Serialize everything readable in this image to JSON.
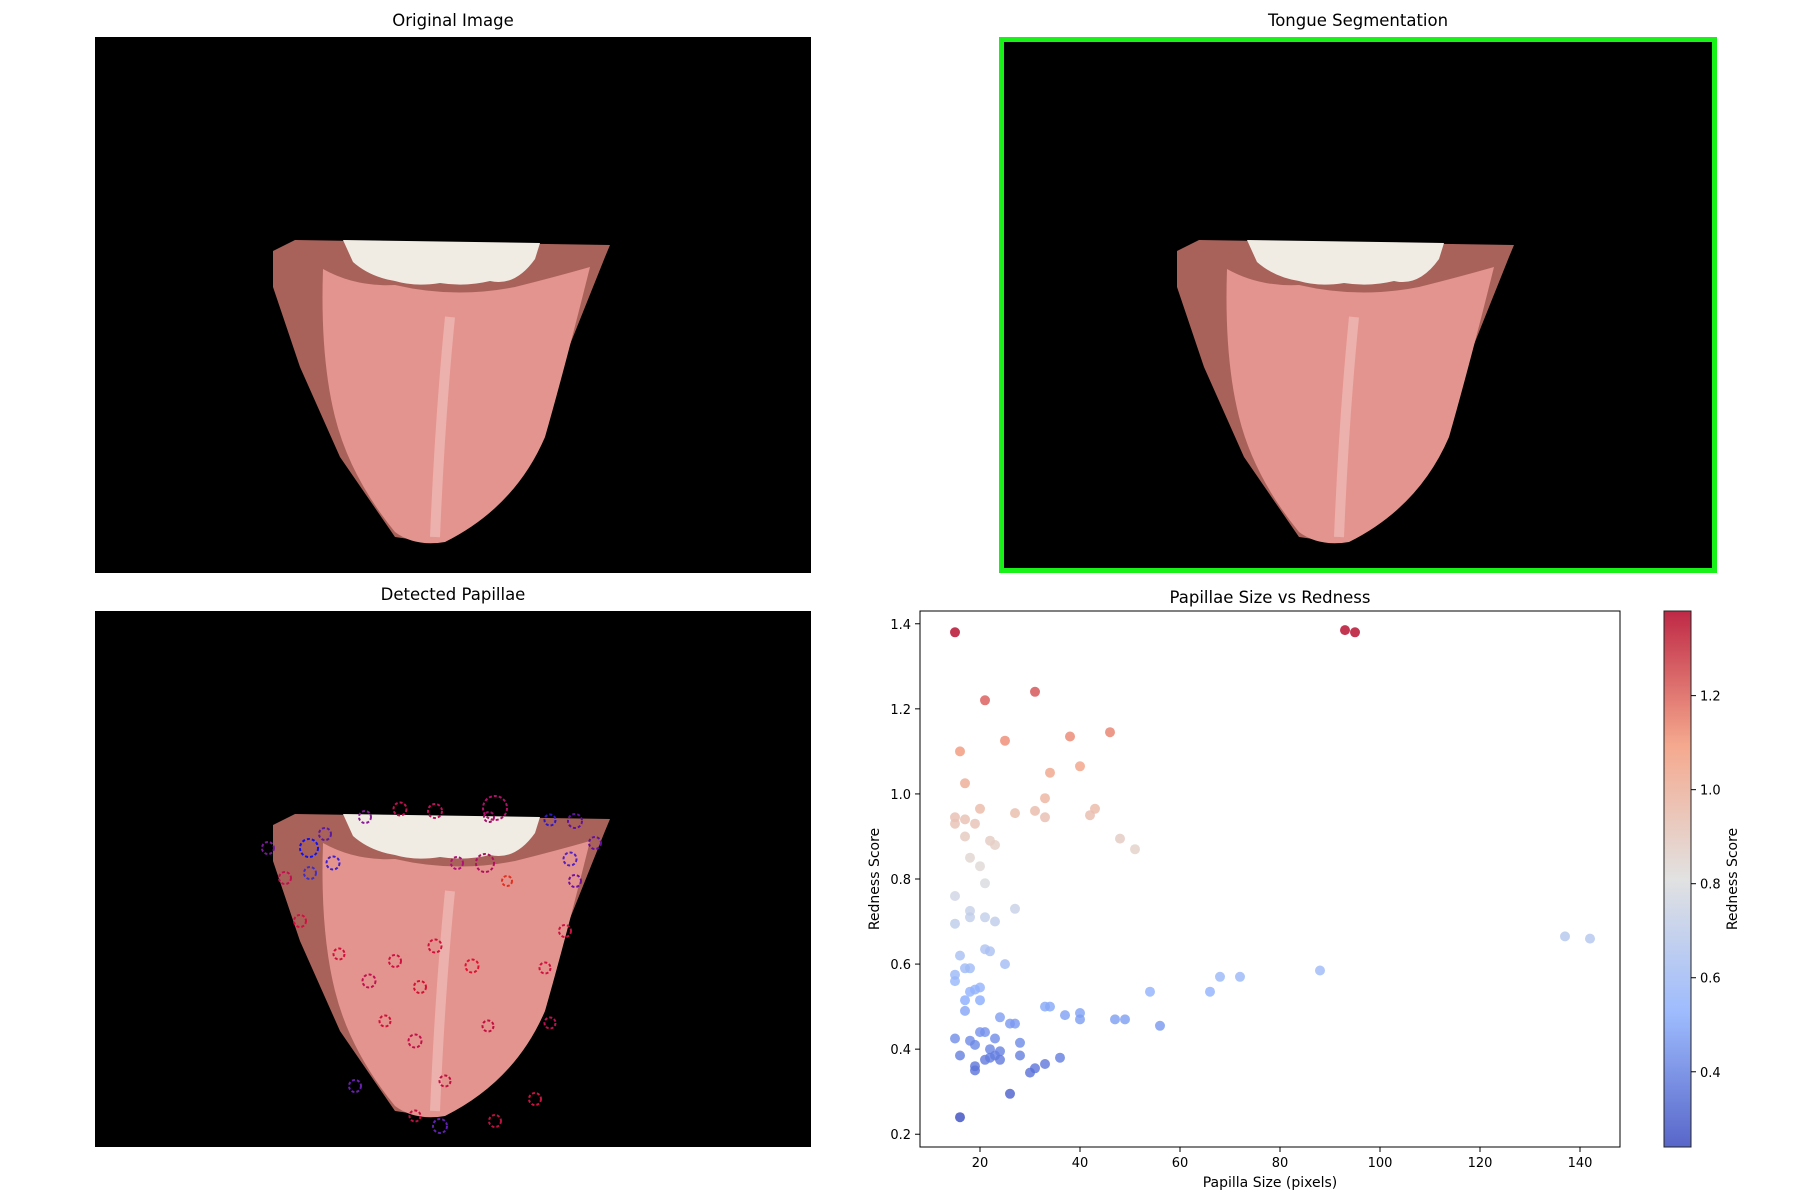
{
  "panels": {
    "original_title": "Original Image",
    "segmentation_title": "Tongue Segmentation",
    "papillae_title": "Detected Papillae",
    "scatter_title": "Papillae Size vs Redness"
  },
  "colors": {
    "background": "#000000",
    "segmentation_border": "#19f219",
    "tongue": "#e4948f",
    "teeth": "#f1ece3",
    "lip": "#a9625a",
    "cmap_low": "#3b4cc0",
    "cmap_mid": "#dddddd",
    "cmap_high": "#b40426"
  },
  "chart_data": {
    "type": "scatter",
    "title": "Papillae Size vs Redness",
    "xlabel": "Papilla Size (pixels)",
    "ylabel": "Redness Score",
    "xlim": [
      8,
      148
    ],
    "ylim": [
      0.17,
      1.43
    ],
    "xticks": [
      "20",
      "40",
      "60",
      "80",
      "100",
      "120",
      "140"
    ],
    "yticks": [
      "0.2",
      "0.4",
      "0.6",
      "0.8",
      "1.0",
      "1.2",
      "1.4"
    ],
    "colorbar": {
      "label": "Redness Score",
      "range": [
        0.24,
        1.38
      ],
      "ticks": [
        "0.4",
        "0.6",
        "0.8",
        "1.0",
        "1.2"
      ]
    },
    "grid": false,
    "points": [
      {
        "x": 15,
        "y": 1.38
      },
      {
        "x": 93,
        "y": 1.385
      },
      {
        "x": 95,
        "y": 1.38
      },
      {
        "x": 31,
        "y": 1.24
      },
      {
        "x": 21,
        "y": 1.22
      },
      {
        "x": 46,
        "y": 1.145
      },
      {
        "x": 38,
        "y": 1.135
      },
      {
        "x": 25,
        "y": 1.125
      },
      {
        "x": 16,
        "y": 1.1
      },
      {
        "x": 40,
        "y": 1.065
      },
      {
        "x": 34,
        "y": 1.05
      },
      {
        "x": 17,
        "y": 1.025
      },
      {
        "x": 33,
        "y": 0.99
      },
      {
        "x": 20,
        "y": 0.965
      },
      {
        "x": 43,
        "y": 0.965
      },
      {
        "x": 31,
        "y": 0.96
      },
      {
        "x": 27,
        "y": 0.955
      },
      {
        "x": 42,
        "y": 0.95
      },
      {
        "x": 15,
        "y": 0.945
      },
      {
        "x": 17,
        "y": 0.94
      },
      {
        "x": 33,
        "y": 0.945
      },
      {
        "x": 15,
        "y": 0.93
      },
      {
        "x": 19,
        "y": 0.93
      },
      {
        "x": 17,
        "y": 0.9
      },
      {
        "x": 22,
        "y": 0.89
      },
      {
        "x": 48,
        "y": 0.895
      },
      {
        "x": 23,
        "y": 0.88
      },
      {
        "x": 51,
        "y": 0.87
      },
      {
        "x": 18,
        "y": 0.85
      },
      {
        "x": 20,
        "y": 0.83
      },
      {
        "x": 21,
        "y": 0.79
      },
      {
        "x": 15,
        "y": 0.76
      },
      {
        "x": 27,
        "y": 0.73
      },
      {
        "x": 18,
        "y": 0.725
      },
      {
        "x": 18,
        "y": 0.71
      },
      {
        "x": 21,
        "y": 0.71
      },
      {
        "x": 15,
        "y": 0.695
      },
      {
        "x": 23,
        "y": 0.7
      },
      {
        "x": 137,
        "y": 0.665
      },
      {
        "x": 142,
        "y": 0.66
      },
      {
        "x": 21,
        "y": 0.635
      },
      {
        "x": 22,
        "y": 0.63
      },
      {
        "x": 16,
        "y": 0.62
      },
      {
        "x": 25,
        "y": 0.6
      },
      {
        "x": 17,
        "y": 0.59
      },
      {
        "x": 18,
        "y": 0.59
      },
      {
        "x": 88,
        "y": 0.585
      },
      {
        "x": 15,
        "y": 0.575
      },
      {
        "x": 68,
        "y": 0.57
      },
      {
        "x": 72,
        "y": 0.57
      },
      {
        "x": 15,
        "y": 0.56
      },
      {
        "x": 20,
        "y": 0.545
      },
      {
        "x": 18,
        "y": 0.535
      },
      {
        "x": 19,
        "y": 0.54
      },
      {
        "x": 54,
        "y": 0.535
      },
      {
        "x": 66,
        "y": 0.535
      },
      {
        "x": 17,
        "y": 0.515
      },
      {
        "x": 20,
        "y": 0.515
      },
      {
        "x": 33,
        "y": 0.5
      },
      {
        "x": 34,
        "y": 0.5
      },
      {
        "x": 17,
        "y": 0.49
      },
      {
        "x": 40,
        "y": 0.485
      },
      {
        "x": 37,
        "y": 0.48
      },
      {
        "x": 40,
        "y": 0.47
      },
      {
        "x": 24,
        "y": 0.475
      },
      {
        "x": 47,
        "y": 0.47
      },
      {
        "x": 49,
        "y": 0.47
      },
      {
        "x": 26,
        "y": 0.46
      },
      {
        "x": 27,
        "y": 0.46
      },
      {
        "x": 56,
        "y": 0.455
      },
      {
        "x": 20,
        "y": 0.44
      },
      {
        "x": 21,
        "y": 0.44
      },
      {
        "x": 15,
        "y": 0.425
      },
      {
        "x": 23,
        "y": 0.425
      },
      {
        "x": 18,
        "y": 0.42
      },
      {
        "x": 28,
        "y": 0.415
      },
      {
        "x": 19,
        "y": 0.41
      },
      {
        "x": 22,
        "y": 0.4
      },
      {
        "x": 24,
        "y": 0.395
      },
      {
        "x": 16,
        "y": 0.385
      },
      {
        "x": 23,
        "y": 0.385
      },
      {
        "x": 28,
        "y": 0.385
      },
      {
        "x": 36,
        "y": 0.38
      },
      {
        "x": 21,
        "y": 0.375
      },
      {
        "x": 22,
        "y": 0.38
      },
      {
        "x": 24,
        "y": 0.375
      },
      {
        "x": 33,
        "y": 0.365
      },
      {
        "x": 19,
        "y": 0.36
      },
      {
        "x": 31,
        "y": 0.355
      },
      {
        "x": 19,
        "y": 0.35
      },
      {
        "x": 30,
        "y": 0.345
      },
      {
        "x": 26,
        "y": 0.295
      },
      {
        "x": 16,
        "y": 0.24
      }
    ]
  }
}
